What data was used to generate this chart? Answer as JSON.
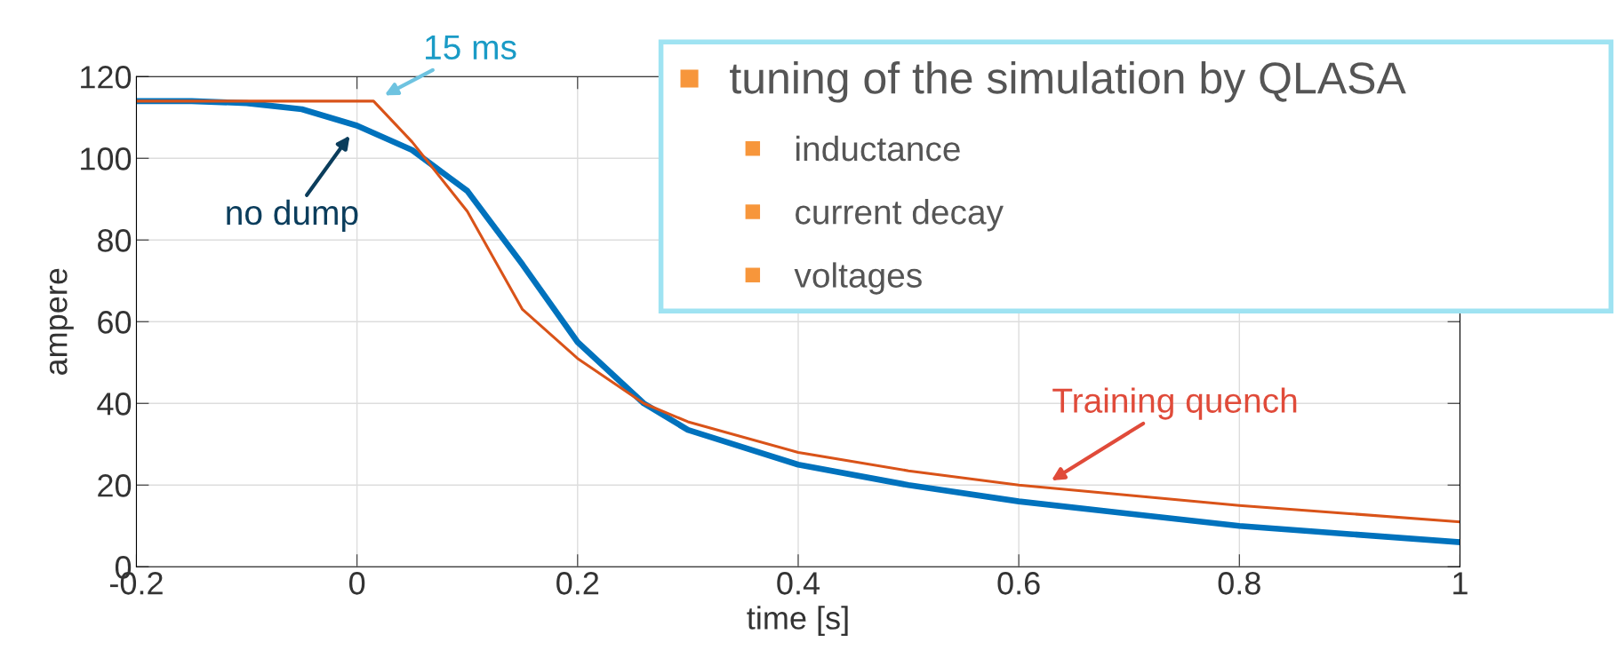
{
  "chart_data": {
    "type": "line",
    "xlabel": "time [s]",
    "ylabel": "ampere",
    "xlim": [
      -0.2,
      1
    ],
    "ylim": [
      0,
      120
    ],
    "xticks": [
      -0.2,
      0,
      0.2,
      0.4,
      0.6,
      0.8,
      1
    ],
    "yticks": [
      0,
      20,
      40,
      60,
      80,
      100,
      120
    ],
    "grid": true,
    "legend": false,
    "marker": "none",
    "line_style": "solid",
    "series": [
      {
        "color": "#0072bd",
        "x": [
          -0.2,
          -0.15,
          -0.1,
          -0.05,
          0,
          0.05,
          0.1,
          0.15,
          0.2,
          0.26,
          0.3,
          0.4,
          0.5,
          0.6,
          0.7,
          0.8,
          0.9,
          1
        ],
        "values": [
          114,
          114,
          113.5,
          112,
          108,
          102,
          92,
          74,
          55,
          40,
          33.5,
          25,
          20,
          16,
          13,
          10,
          8,
          6
        ]
      },
      {
        "color": "#d95319",
        "x": [
          -0.2,
          -0.1,
          0,
          0.015,
          0.05,
          0.1,
          0.15,
          0.2,
          0.26,
          0.3,
          0.4,
          0.5,
          0.6,
          0.7,
          0.8,
          0.9,
          1
        ],
        "values": [
          114,
          114,
          114,
          114,
          104,
          87,
          63,
          51,
          40,
          35.5,
          28,
          23.5,
          20,
          17.5,
          15,
          13,
          11
        ]
      }
    ],
    "annotations": [
      {
        "text": "15 ms",
        "x": 0.015,
        "y": 114
      },
      {
        "text": "no dump",
        "x": 0,
        "y": 108
      },
      {
        "text": "Training quench",
        "x": 0.62,
        "y": 19.5
      },
      "tuning of the simulation by QLASA",
      "inductance",
      "current decay",
      "voltages"
    ]
  }
}
